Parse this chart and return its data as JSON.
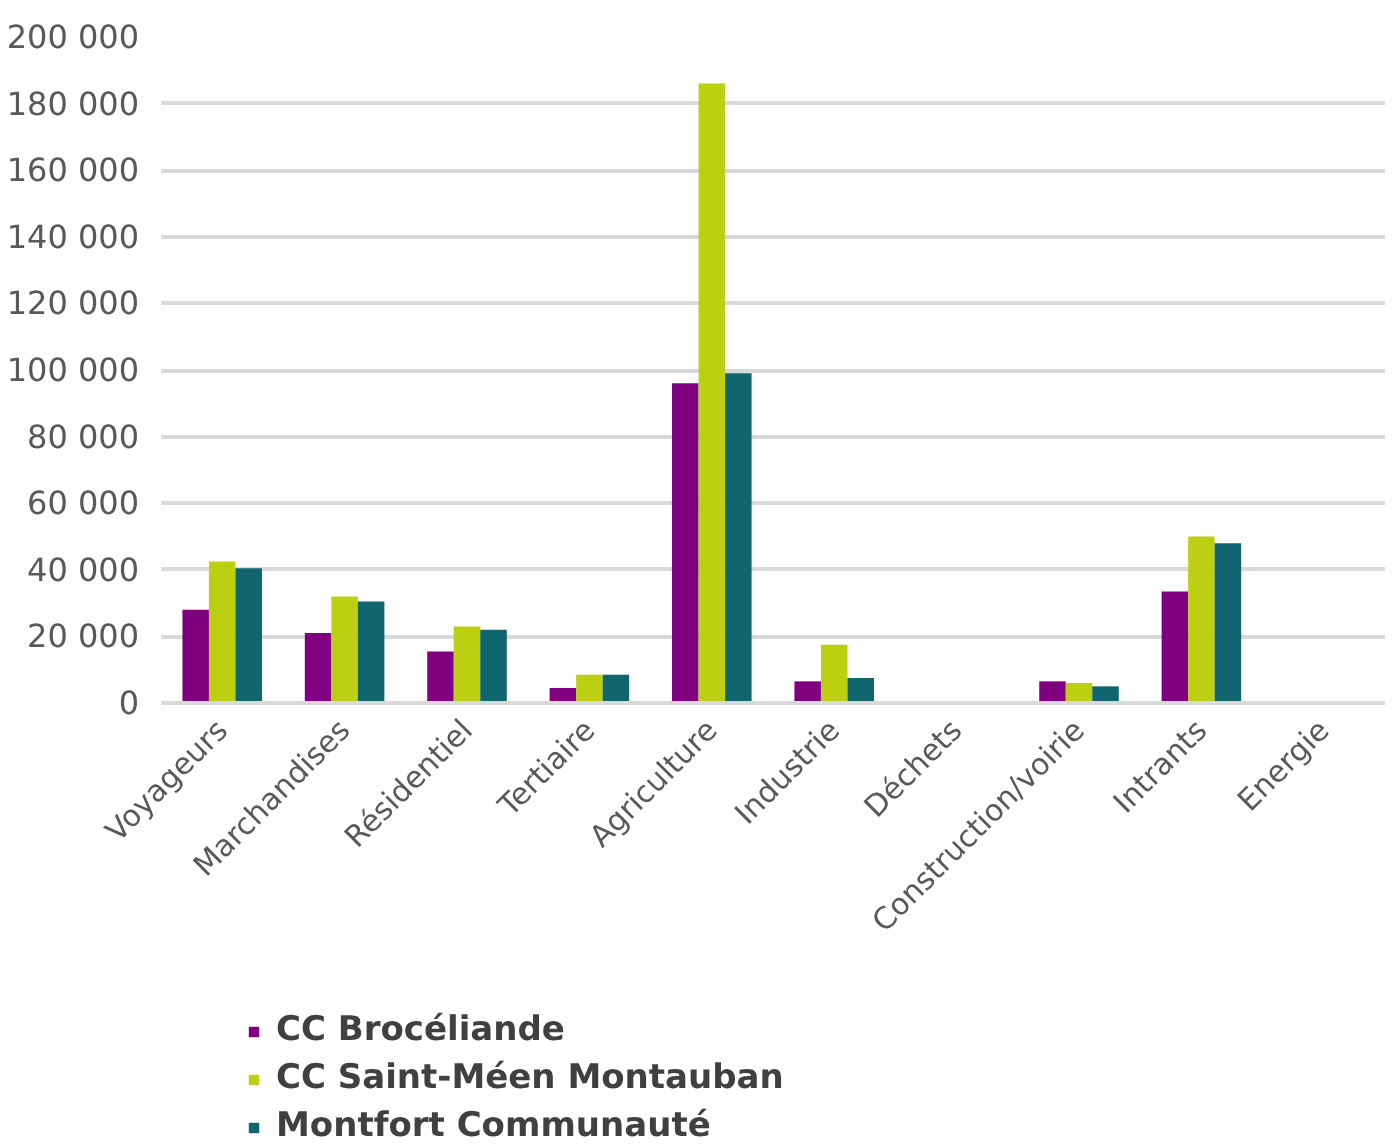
{
  "chart_data": {
    "type": "bar",
    "categories": [
      "Voyageurs",
      "Marchandises",
      "Résidentiel",
      "Tertiaire",
      "Agriculture",
      "Industrie",
      "Déchets",
      "Construction/voirie",
      "Intrants",
      "Energie"
    ],
    "series": [
      {
        "name": "CC Brocéliande",
        "color": "#800080",
        "values": [
          28000,
          21000,
          15500,
          4500,
          96000,
          6500,
          null,
          6500,
          33500,
          null
        ]
      },
      {
        "name": "CC Saint-Méen Montauban",
        "color": "#bdcf12",
        "values": [
          42500,
          32000,
          23000,
          8500,
          186000,
          17500,
          null,
          6000,
          50000,
          null
        ]
      },
      {
        "name": "Montfort Communauté",
        "color": "#10656e",
        "values": [
          40500,
          30500,
          22000,
          8500,
          99000,
          7500,
          null,
          5000,
          48000,
          null
        ]
      }
    ],
    "ylim": [
      0,
      200000
    ],
    "yticks": [
      {
        "value": 0,
        "label": "0"
      },
      {
        "value": 20000,
        "label": "20 000"
      },
      {
        "value": 40000,
        "label": "40 000"
      },
      {
        "value": 60000,
        "label": "60 000"
      },
      {
        "value": 80000,
        "label": "80 000"
      },
      {
        "value": 100000,
        "label": "100 000"
      },
      {
        "value": 120000,
        "label": "120 000"
      },
      {
        "value": 140000,
        "label": "140 000"
      },
      {
        "value": 160000,
        "label": "160 000"
      },
      {
        "value": 180000,
        "label": "180 000"
      },
      {
        "value": 200000,
        "label": "200 000"
      }
    ],
    "grid": "y",
    "legend": "bottom"
  }
}
